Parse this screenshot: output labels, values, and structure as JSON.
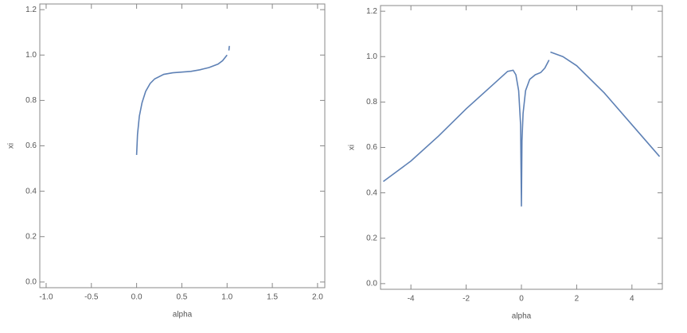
{
  "chart_data": [
    {
      "type": "line",
      "x_label": "alpha",
      "y_label": "xi",
      "x": [
        0,
        0.01,
        0.03,
        0.06,
        0.1,
        0.15,
        0.2,
        0.3,
        0.4,
        0.5,
        0.6,
        0.7,
        0.8,
        0.9,
        0.95,
        1.0,
        1.01,
        1.02,
        1.025
      ],
      "series": [
        {
          "color": "#5e81b5",
          "values": [
            0.56,
            0.65,
            0.73,
            0.79,
            0.84,
            0.875,
            0.895,
            0.915,
            0.922,
            0.925,
            0.928,
            0.935,
            0.945,
            0.96,
            0.975,
            1.0,
            null,
            1.02,
            1.04
          ]
        }
      ],
      "xlim": [
        -1.07,
        2.08
      ],
      "xticks": [
        {
          "value": -1,
          "label": "-1.0"
        },
        {
          "value": -0.5,
          "label": "-0.5"
        },
        {
          "value": 0,
          "label": "0.0"
        },
        {
          "value": 0.5,
          "label": "0.5"
        },
        {
          "value": 1,
          "label": "1.0"
        },
        {
          "value": 1.5,
          "label": "1.5"
        },
        {
          "value": 2,
          "label": "2.0"
        }
      ],
      "ylim": [
        -0.025,
        1.225
      ],
      "yticks": [
        {
          "value": 0,
          "label": "0.0"
        },
        0.2,
        0.4,
        0.6,
        0.8,
        {
          "value": 1,
          "label": "1.0"
        },
        1.2
      ]
    },
    {
      "type": "line",
      "x_label": "alpha",
      "y_label": "xi",
      "x": [
        -5,
        -4,
        -3,
        -2,
        -1,
        -0.5,
        -0.3,
        -0.2,
        -0.1,
        -0.03,
        0,
        0.02,
        0.06,
        0.15,
        0.3,
        0.5,
        0.7,
        0.85,
        1.0,
        1.02,
        1.05,
        1.5,
        2,
        3,
        4,
        5
      ],
      "series": [
        {
          "color": "#5e81b5",
          "values": [
            0.45,
            0.54,
            0.65,
            0.77,
            0.88,
            0.935,
            0.94,
            0.92,
            0.85,
            0.7,
            0.34,
            0.63,
            0.75,
            0.85,
            0.9,
            0.92,
            0.93,
            0.95,
            0.985,
            null,
            1.02,
            1.0,
            0.96,
            0.84,
            0.7,
            0.56
          ]
        }
      ],
      "xlim": [
        -5.1,
        5.1
      ],
      "xticks": [
        -4,
        -2,
        0,
        2,
        4
      ],
      "ylim": [
        -0.025,
        1.225
      ],
      "yticks": [
        {
          "value": 0,
          "label": "0.0"
        },
        0.2,
        0.4,
        0.6,
        0.8,
        {
          "value": 1,
          "label": "1.0"
        },
        1.2
      ]
    }
  ]
}
